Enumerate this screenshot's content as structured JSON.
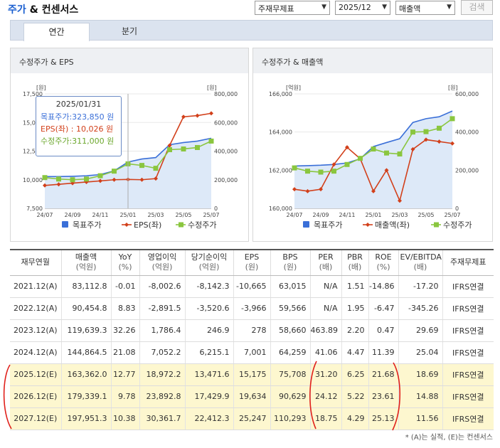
{
  "header": {
    "title_highlight": "주가",
    "title_rest": " & 컨센서스",
    "select_type": "주재무제표",
    "select_period": "2025/12",
    "select_metric": "매출액",
    "search_label": "검색"
  },
  "tabs": [
    {
      "label": "연간",
      "active": true
    },
    {
      "label": "분기",
      "active": false
    }
  ],
  "chart_left": {
    "title": "수정주가 & EPS",
    "left_unit": "[원]",
    "right_unit": "[원]",
    "tooltip": {
      "date": "2025/01/31",
      "line1": "목표주가:323,850 원",
      "line2": "EPS(좌)  : 10,026 원",
      "line3": "수정주가:311,000 원"
    },
    "legend": [
      "목표주가",
      "EPS(좌)",
      "수정주가"
    ]
  },
  "chart_right": {
    "title": "수정주가 & 매출액",
    "left_unit": "[억원]",
    "right_unit": "[원]",
    "legend": [
      "목표주가",
      "매출액(좌)",
      "수정주가"
    ]
  },
  "colors": {
    "target_price": "#3a6fd8",
    "eps": "#d2401b",
    "adj_price": "#8ac63f",
    "area": "#dde9f8",
    "estimate_bg": "#fdf7cf",
    "annotation": "#e0201b"
  },
  "chart_data": [
    {
      "type": "line",
      "title": "수정주가 & EPS",
      "x": [
        "24/07",
        "24/08",
        "24/09",
        "24/10",
        "24/11",
        "24/12",
        "25/01",
        "25/02",
        "25/03",
        "25/04",
        "25/05",
        "25/06",
        "25/07"
      ],
      "xticks": [
        "24/07",
        "24/09",
        "24/11",
        "25/01",
        "25/03",
        "25/05",
        "25/07"
      ],
      "ylim_left": [
        7500,
        17500
      ],
      "yticks_left": [
        "7,500",
        "10,000",
        "12,500",
        "15,000",
        "17,500"
      ],
      "ylim_right": [
        0,
        800000
      ],
      "yticks_right": [
        "0",
        "200,000",
        "400,000",
        "600,000",
        "800,000"
      ],
      "series": [
        {
          "name": "목표주가",
          "axis": "right",
          "values": [
            222000,
            222000,
            224000,
            228000,
            236000,
            262000,
            323850,
            345000,
            355000,
            445000,
            460000,
            470000,
            490000
          ]
        },
        {
          "name": "EPS(좌)",
          "axis": "left",
          "values": [
            9500,
            9600,
            9700,
            9800,
            9900,
            10000,
            10026,
            10000,
            10100,
            13000,
            15500,
            15600,
            15800
          ]
        },
        {
          "name": "수정주가",
          "axis": "right",
          "values": [
            215000,
            205000,
            200000,
            205000,
            228000,
            260000,
            311000,
            300000,
            280000,
            410000,
            415000,
            425000,
            470000
          ]
        }
      ]
    },
    {
      "type": "line",
      "title": "수정주가 & 매출액",
      "x": [
        "24/07",
        "24/08",
        "24/09",
        "24/10",
        "24/11",
        "24/12",
        "25/01",
        "25/02",
        "25/03",
        "25/04",
        "25/05",
        "25/06",
        "25/07"
      ],
      "xticks": [
        "24/07",
        "24/09",
        "24/11",
        "25/01",
        "25/03",
        "25/05",
        "25/07"
      ],
      "ylim_left": [
        160000,
        166000
      ],
      "yticks_left": [
        "160,000",
        "162,000",
        "164,000",
        "166,000"
      ],
      "ylim_right": [
        0,
        600000
      ],
      "yticks_right": [
        "0",
        "200,000",
        "400,000",
        "600,000"
      ],
      "series": [
        {
          "name": "목표주가",
          "axis": "right",
          "values": [
            222000,
            224000,
            226000,
            230000,
            238000,
            260000,
            323850,
            345000,
            365000,
            450000,
            470000,
            480000,
            510000
          ]
        },
        {
          "name": "매출액(좌)",
          "axis": "left",
          "values": [
            161000,
            160900,
            161000,
            162300,
            163200,
            162600,
            160900,
            162000,
            160400,
            163100,
            163600,
            163500,
            163400
          ]
        },
        {
          "name": "수정주가",
          "axis": "right",
          "values": [
            212000,
            195000,
            190000,
            195000,
            230000,
            262000,
            311000,
            290000,
            285000,
            400000,
            402000,
            420000,
            470000
          ]
        }
      ]
    }
  ],
  "table": {
    "headers": [
      {
        "label": "재무연월",
        "unit": ""
      },
      {
        "label": "매출액",
        "unit": "(억원)"
      },
      {
        "label": "YoY",
        "unit": "(%)"
      },
      {
        "label": "영업이익",
        "unit": "(억원)"
      },
      {
        "label": "당기순이익",
        "unit": "(억원)"
      },
      {
        "label": "EPS",
        "unit": "(원)"
      },
      {
        "label": "BPS",
        "unit": "(원)"
      },
      {
        "label": "PER",
        "unit": "(배)"
      },
      {
        "label": "PBR",
        "unit": "(배)"
      },
      {
        "label": "ROE",
        "unit": "(%)"
      },
      {
        "label": "EV/EBITDA",
        "unit": "(배)"
      },
      {
        "label": "주재무제표",
        "unit": ""
      }
    ],
    "rows": [
      {
        "estimate": false,
        "cells": [
          "2021.12(A)",
          "83,112.8",
          "-0.01",
          "-8,002.6",
          "-8,142.3",
          "-10,665",
          "63,015",
          "N/A",
          "1.51",
          "-14.86",
          "-17.20",
          "IFRS연결"
        ]
      },
      {
        "estimate": false,
        "cells": [
          "2022.12(A)",
          "90,454.8",
          "8.83",
          "-2,891.5",
          "-3,520.6",
          "-3,966",
          "59,566",
          "N/A",
          "1.95",
          "-6.47",
          "-345.26",
          "IFRS연결"
        ]
      },
      {
        "estimate": false,
        "cells": [
          "2023.12(A)",
          "119,639.3",
          "32.26",
          "1,786.4",
          "246.9",
          "278",
          "58,660",
          "463.89",
          "2.20",
          "0.47",
          "29.69",
          "IFRS연결"
        ]
      },
      {
        "estimate": false,
        "cells": [
          "2024.12(A)",
          "144,864.5",
          "21.08",
          "7,052.2",
          "6,215.1",
          "7,001",
          "64,259",
          "41.06",
          "4.47",
          "11.39",
          "25.04",
          "IFRS연결"
        ]
      },
      {
        "estimate": true,
        "cells": [
          "2025.12(E)",
          "163,362.0",
          "12.77",
          "18,972.2",
          "13,471.6",
          "15,175",
          "75,708",
          "31.20",
          "6.25",
          "21.68",
          "18.69",
          "IFRS연결"
        ]
      },
      {
        "estimate": true,
        "cells": [
          "2026.12(E)",
          "179,339.1",
          "9.78",
          "23,892.8",
          "17,429.9",
          "19,634",
          "90,629",
          "24.12",
          "5.22",
          "23.61",
          "14.88",
          "IFRS연결"
        ]
      },
      {
        "estimate": true,
        "cells": [
          "2027.12(E)",
          "197,951.3",
          "10.38",
          "30,361.7",
          "22,412.3",
          "25,247",
          "110,293",
          "18.75",
          "4.29",
          "25.13",
          "11.56",
          "IFRS연결"
        ]
      }
    ],
    "note": "* (A)는 실적, (E)는 컨센서스"
  }
}
